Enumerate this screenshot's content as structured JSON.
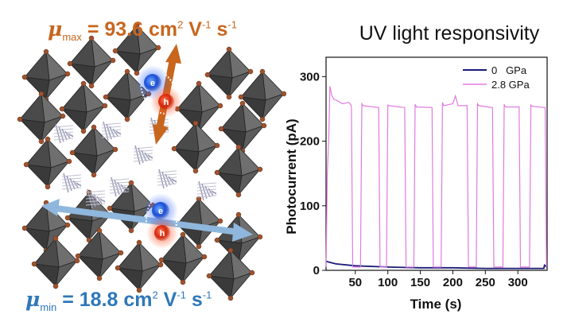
{
  "left_panel": {
    "mu_max": {
      "symbol": "μ",
      "sub": "max",
      "eq": " = 93.6 cm",
      "sup1": "2",
      "mid": " V",
      "sup2": "-1",
      "end": " s",
      "sup3": "-1",
      "color": "#c8661e"
    },
    "mu_min": {
      "symbol": "μ",
      "sub": "min",
      "eq": " = 18.8 cm",
      "sup1": "2",
      "mid": " V",
      "sup2": "-1",
      "end": " s",
      "sup3": "-1",
      "color": "#2e78b9"
    },
    "carrier_labels": {
      "electron": "e",
      "hole": "h"
    }
  },
  "chart_data": {
    "type": "line",
    "title": "UV light responsivity",
    "xlabel": "Time (s)",
    "ylabel": "Photocurrent (pA)",
    "xlim": [
      5,
      345
    ],
    "ylim": [
      0,
      330
    ],
    "xticks": [
      "50",
      "100",
      "150",
      "200",
      "250",
      "300"
    ],
    "xtick_values": [
      50,
      100,
      150,
      200,
      250,
      300
    ],
    "yticks": [
      "0",
      "100",
      "200",
      "300"
    ],
    "ytick_values": [
      0,
      100,
      200,
      300
    ],
    "legend_position": "top-right",
    "grid": false,
    "series": [
      {
        "name": "0   GPa",
        "color": "#1a1a7a",
        "x": [
          5,
          8,
          20,
          50,
          100,
          150,
          200,
          250,
          300,
          340,
          341,
          345
        ],
        "y": [
          14,
          13,
          10,
          7,
          5,
          4,
          4,
          3,
          3,
          3,
          8,
          5
        ]
      },
      {
        "name": "2.8 GPa",
        "color": "#e07be0",
        "x": [
          5,
          7,
          9,
          11,
          14,
          17,
          22,
          30,
          40,
          44,
          46,
          58,
          60,
          62,
          86,
          88,
          90,
          98,
          100,
          102,
          126,
          128,
          130,
          140,
          142,
          144,
          168,
          170,
          172,
          182,
          184,
          186,
          200,
          204,
          208,
          222,
          224,
          226,
          236,
          238,
          240,
          261,
          263,
          265,
          277,
          279,
          281,
          302,
          304,
          306,
          318,
          320,
          322,
          342,
          344
        ],
        "y": [
          5,
          150,
          200,
          285,
          270,
          265,
          263,
          258,
          260,
          255,
          5,
          5,
          258,
          255,
          252,
          5,
          5,
          5,
          256,
          255,
          252,
          5,
          5,
          5,
          257,
          253,
          252,
          5,
          5,
          5,
          260,
          255,
          258,
          270,
          255,
          255,
          5,
          5,
          5,
          258,
          255,
          252,
          5,
          5,
          5,
          257,
          253,
          253,
          5,
          5,
          5,
          256,
          254,
          252,
          5
        ]
      }
    ]
  }
}
